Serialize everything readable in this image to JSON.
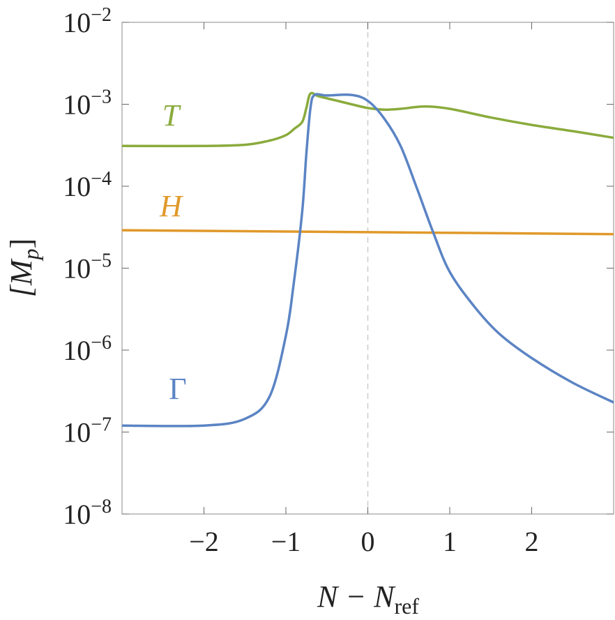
{
  "chart_data": {
    "type": "line",
    "xlabel": "N − N",
    "xlabel_sub": "ref",
    "ylabel": "[M",
    "ylabel_sub": "p",
    "ylabel_end": "]",
    "log_y": true,
    "xlim": [
      -3,
      3
    ],
    "xticks": [
      {
        "value": -2,
        "label": "−2"
      },
      {
        "value": -1,
        "label": "−1"
      },
      0,
      1,
      2
    ],
    "ylim": [
      1e-08,
      0.01
    ],
    "yticks": [
      {
        "value": 1e-08,
        "label": "10−8"
      },
      {
        "value": 1e-07,
        "label": "10−7"
      },
      {
        "value": 1e-06,
        "label": "10−6"
      },
      {
        "value": 1e-05,
        "label": "10−5"
      },
      {
        "value": 0.0001,
        "label": "10−4"
      },
      {
        "value": 0.001,
        "label": "10−3"
      },
      {
        "value": 0.01,
        "label": "10−2"
      }
    ],
    "vline": 0,
    "series": [
      {
        "name": "T",
        "color": "#8aab3c",
        "x": [
          -3,
          -2,
          -1.5,
          -1.2,
          -1,
          -0.9,
          -0.8,
          -0.75,
          -0.7,
          -0.6,
          -0.4,
          -0.2,
          0,
          0.2,
          0.4,
          0.7,
          1,
          1.5,
          2,
          2.5,
          3
        ],
        "values": [
          0.00031,
          0.00031,
          0.00032,
          0.00036,
          0.00042,
          0.0005,
          0.00061,
          0.0009,
          0.00135,
          0.00125,
          0.00112,
          0.001,
          0.0009,
          0.00086,
          0.00088,
          0.00094,
          0.00088,
          0.00069,
          0.00056,
          0.00047,
          0.00039
        ]
      },
      {
        "name": "H",
        "color": "#e0992a",
        "x": [
          -3,
          0,
          3
        ],
        "values": [
          2.9e-05,
          2.75e-05,
          2.6e-05
        ]
      },
      {
        "name": "Γ",
        "color": "#5b84c4",
        "x": [
          -3,
          -2,
          -1.5,
          -1.2,
          -1,
          -0.9,
          -0.8,
          -0.75,
          -0.7,
          -0.65,
          -0.5,
          -0.2,
          0,
          0.2,
          0.4,
          0.6,
          0.8,
          1,
          1.3,
          1.6,
          2,
          2.5,
          3
        ],
        "values": [
          1.2e-07,
          1.2e-07,
          1.45e-07,
          2.7e-07,
          1.5e-06,
          7e-06,
          5e-05,
          0.00025,
          0.0009,
          0.0013,
          0.00128,
          0.0013,
          0.0011,
          0.00067,
          0.00031,
          9.4e-05,
          2.7e-05,
          9e-06,
          3.4e-06,
          1.6e-06,
          8e-07,
          4e-07,
          2.3e-07
        ]
      }
    ]
  }
}
